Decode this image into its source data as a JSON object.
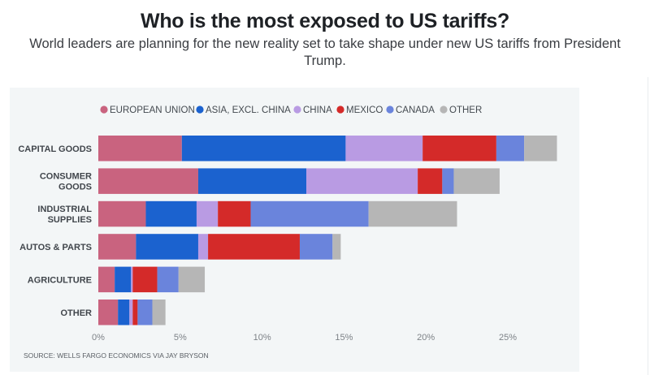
{
  "header": {
    "title": "Who is the most exposed to US tariffs?",
    "subtitle_line1": "World leaders are planning for the new reality set to take shape under new US tariffs from President",
    "subtitle_line2": "Trump."
  },
  "chart_data": {
    "type": "bar",
    "orientation": "horizontal",
    "stacked": true,
    "title": "Who is the most exposed to US tariffs?",
    "xlabel": "",
    "ylabel": "",
    "xlim": [
      0,
      28
    ],
    "x_ticks": [
      0,
      5,
      10,
      15,
      20,
      25
    ],
    "x_tick_labels": [
      "0%",
      "5%",
      "10%",
      "15%",
      "20%",
      "25%"
    ],
    "grid": false,
    "legend_position": "top",
    "categories": [
      [
        "CAPITAL GOODS"
      ],
      [
        "CONSUMER",
        "GOODS"
      ],
      [
        "INDUSTRIAL",
        "SUPPLIES"
      ],
      [
        "AUTOS & PARTS"
      ],
      [
        "AGRICULTURE"
      ],
      [
        "OTHER"
      ]
    ],
    "series": [
      {
        "name": "EUROPEAN UNION",
        "color": "#c9637f",
        "values": [
          5.1,
          6.1,
          2.9,
          2.3,
          1.0,
          1.2
        ]
      },
      {
        "name": "ASIA, EXCL. CHINA",
        "color": "#1b62cf",
        "values": [
          10.0,
          6.6,
          3.1,
          3.8,
          1.0,
          0.7
        ]
      },
      {
        "name": "CHINA",
        "color": "#b99be3",
        "values": [
          4.7,
          6.8,
          1.3,
          0.6,
          0.1,
          0.2
        ]
      },
      {
        "name": "MEXICO",
        "color": "#d42a29",
        "values": [
          4.5,
          1.5,
          2.0,
          5.6,
          1.5,
          0.3
        ]
      },
      {
        "name": "CANADA",
        "color": "#6a84dc",
        "values": [
          1.7,
          0.7,
          7.2,
          2.0,
          1.3,
          0.9
        ]
      },
      {
        "name": "OTHER",
        "color": "#b6b6b6",
        "values": [
          2.0,
          2.8,
          5.4,
          0.5,
          1.6,
          0.8
        ]
      }
    ],
    "source": "SOURCE: WELLS FARGO ECONOMICS VIA JAY BRYSON"
  }
}
